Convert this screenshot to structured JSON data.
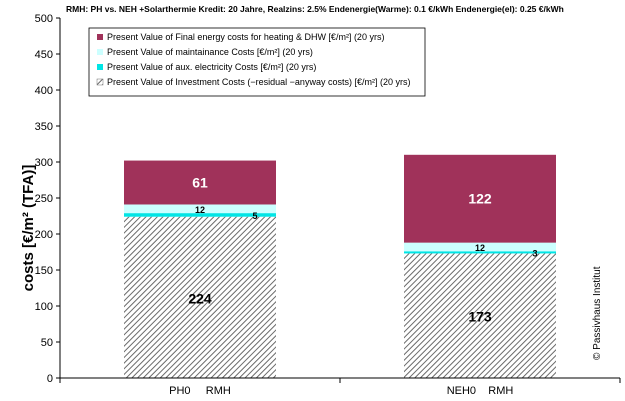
{
  "chart_data": {
    "type": "bar",
    "stacked": true,
    "title": "RMH:  PH vs. NEH  +Solarthermie Kredit: 20 Jahre,  Realzins: 2.5%   Endenergie(Warme): 0.1 €/kWh   Endenergie(el): 0.25 €/kWh",
    "ylabel": "costs [€/m² (TFA)]",
    "xlabel": "",
    "ylim": [
      0,
      500
    ],
    "yticks": [
      0,
      50,
      100,
      150,
      200,
      250,
      300,
      350,
      400,
      450,
      500
    ],
    "categories": [
      "PH0     RMH",
      "NEH0    RMH"
    ],
    "series": [
      {
        "name": "Present Value of Investment Costs (−residual −anyway costs) [€/m²]  (20 yrs)",
        "values": [
          224,
          173
        ],
        "labels": [
          "224",
          "173"
        ],
        "color": "#b0b0b0",
        "pattern": "hatch"
      },
      {
        "name": "Present Value of  aux. electricity  Costs [€/m²]   (20 yrs)",
        "values": [
          5,
          3
        ],
        "labels": [
          "5",
          "3"
        ],
        "color": "#00e5e5"
      },
      {
        "name": "Present Value of maintainance Costs [€/m²]   (20 yrs)",
        "values": [
          12,
          12
        ],
        "labels": [
          "12",
          "12"
        ],
        "color": "#ccffff"
      },
      {
        "name": "Present Value of Final energy costs for heating & DHW [€/m²]  (20 yrs)",
        "values": [
          61,
          122
        ],
        "labels": [
          "61",
          "122"
        ],
        "color": "#a0325a"
      }
    ],
    "legend_position": "top-left",
    "grid": false,
    "watermark": "© Passivhaus Institut"
  }
}
